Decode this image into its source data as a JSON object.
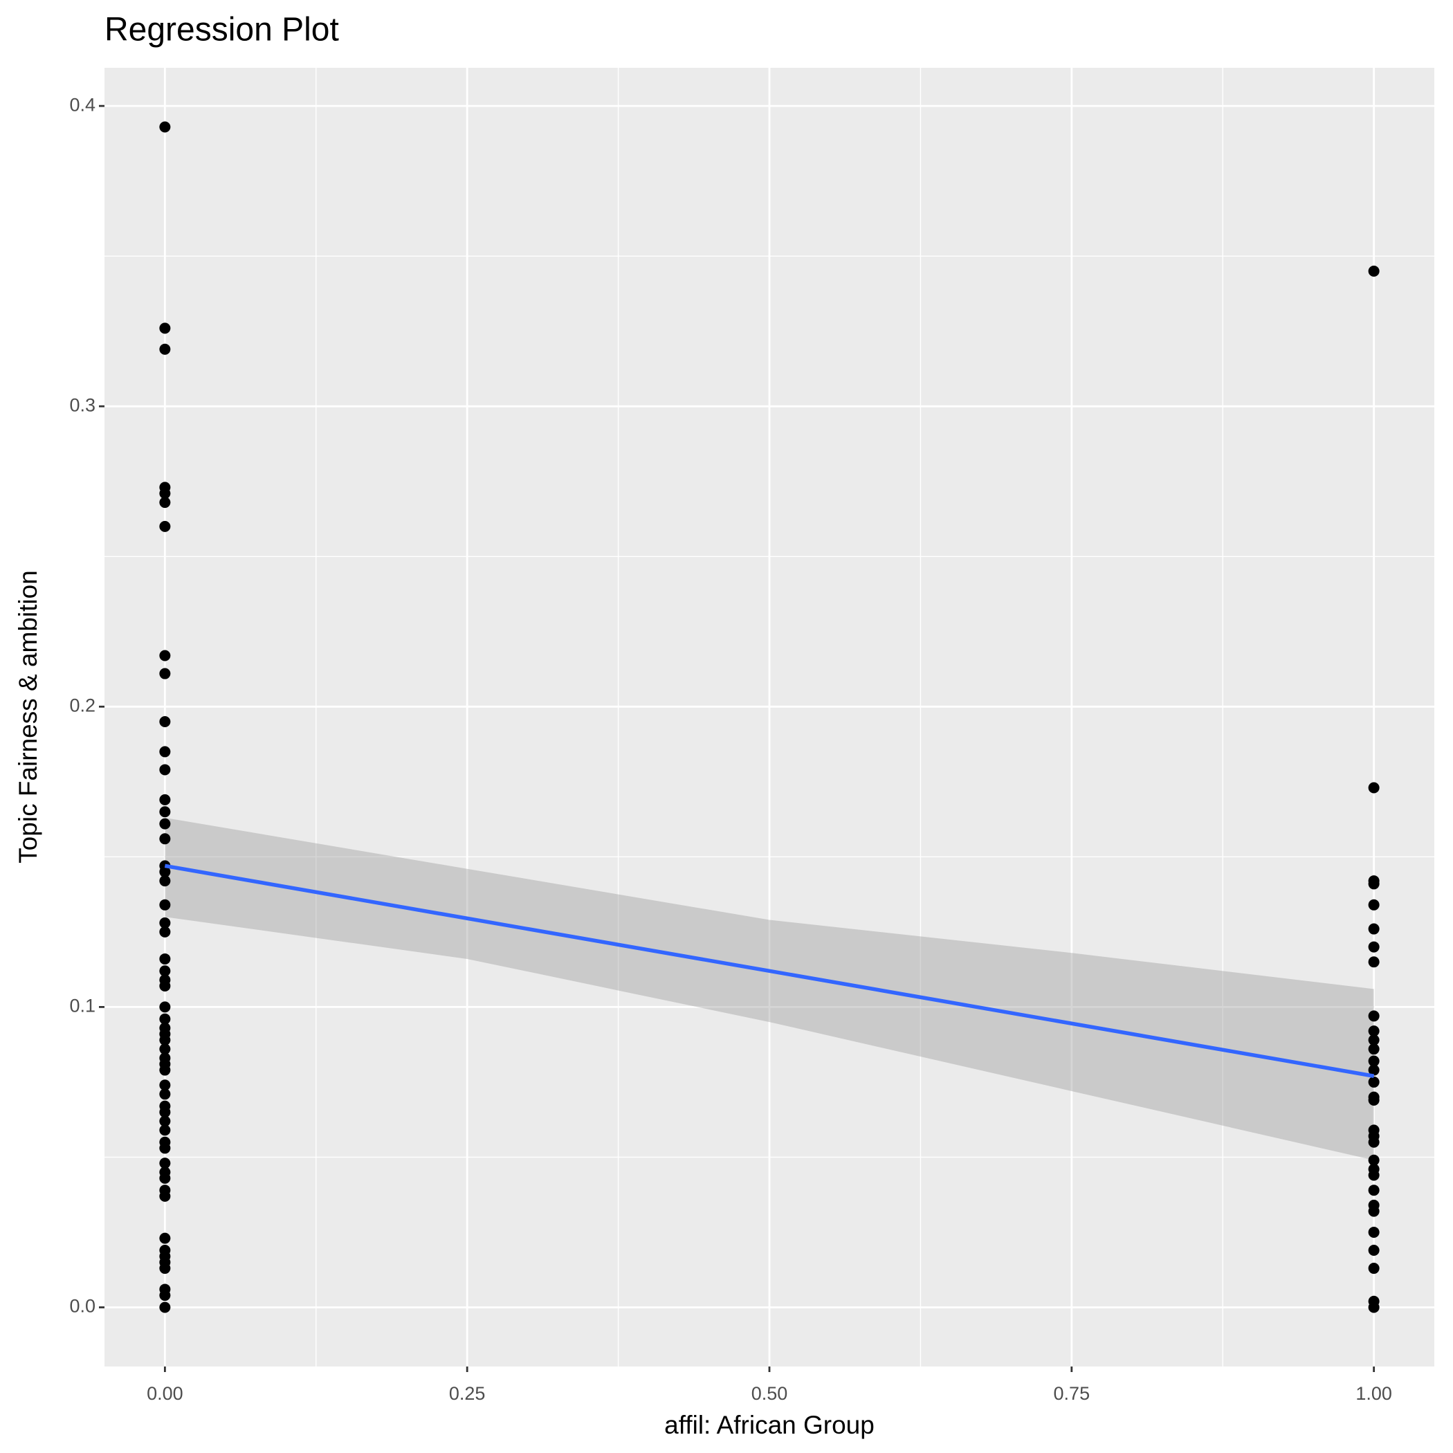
{
  "chart_data": {
    "type": "scatter",
    "title": "Regression Plot",
    "x_label": "affil: African Group",
    "y_label": "Topic Fairness & ambition",
    "color": "#000000",
    "x": [
      0,
      0,
      0,
      0,
      0,
      0,
      0,
      0,
      0,
      0,
      0,
      0,
      0,
      0,
      0,
      0,
      0,
      0,
      0,
      0,
      0,
      0,
      0,
      0,
      0,
      0,
      0,
      0,
      0,
      0,
      0,
      0,
      0,
      0,
      0,
      0,
      0,
      0,
      0,
      0,
      0,
      0,
      0,
      0,
      0,
      0,
      0,
      0,
      0,
      0,
      0,
      0,
      0,
      0,
      0,
      0,
      1,
      1,
      1,
      1,
      1,
      1,
      1,
      1,
      1,
      1,
      1,
      1,
      1,
      1,
      1,
      1,
      1,
      1,
      1,
      1,
      1,
      1,
      1,
      1,
      1,
      1,
      1,
      1,
      1,
      1,
      1
    ],
    "values": [
      0.393,
      0.326,
      0.319,
      0.273,
      0.271,
      0.268,
      0.26,
      0.217,
      0.211,
      0.195,
      0.185,
      0.179,
      0.169,
      0.165,
      0.161,
      0.156,
      0.147,
      0.145,
      0.142,
      0.134,
      0.128,
      0.125,
      0.116,
      0.112,
      0.109,
      0.107,
      0.1,
      0.096,
      0.093,
      0.091,
      0.089,
      0.086,
      0.083,
      0.081,
      0.079,
      0.074,
      0.071,
      0.067,
      0.065,
      0.062,
      0.059,
      0.055,
      0.053,
      0.048,
      0.045,
      0.043,
      0.039,
      0.037,
      0.023,
      0.019,
      0.017,
      0.015,
      0.013,
      0.006,
      0.004,
      0,
      0.345,
      0.173,
      0.142,
      0.141,
      0.134,
      0.126,
      0.12,
      0.115,
      0.097,
      0.092,
      0.089,
      0.086,
      0.082,
      0.079,
      0.075,
      0.07,
      0.069,
      0.059,
      0.057,
      0.055,
      0.049,
      0.046,
      0.044,
      0.039,
      0.034,
      0.032,
      0.025,
      0.019,
      0.013,
      0.002,
      0
    ],
    "fit": {
      "x": [
        0,
        1
      ],
      "values": [
        0.147,
        0.077
      ],
      "color": "#3366ff"
    },
    "ribbon": {
      "x": [
        0,
        0.25,
        0.5,
        0.75,
        1
      ],
      "lower": [
        0.13,
        0.116,
        0.095,
        0.072,
        0.049
      ],
      "upper": [
        0.163,
        0.146,
        0.129,
        0.118,
        0.106
      ],
      "color": "#999999"
    },
    "xlim": [
      -0.05,
      1.05
    ],
    "ylim": [
      -0.0197,
      0.4127
    ],
    "xticks": [
      {
        "value": 0,
        "label": "0.00"
      },
      {
        "value": 0.25,
        "label": "0.25"
      },
      {
        "value": 0.5,
        "label": "0.50"
      },
      {
        "value": 0.75,
        "label": "0.75"
      },
      {
        "value": 1,
        "label": "1.00"
      }
    ],
    "yticks": [
      {
        "value": 0,
        "label": "0.0"
      },
      0.1,
      0.2,
      0.3,
      0.4
    ],
    "x_minor_grid": [
      0.125,
      0.375,
      0.625,
      0.875
    ],
    "y_minor_grid": [
      0.05,
      0.15,
      0.25,
      0.35
    ],
    "grid": true
  }
}
